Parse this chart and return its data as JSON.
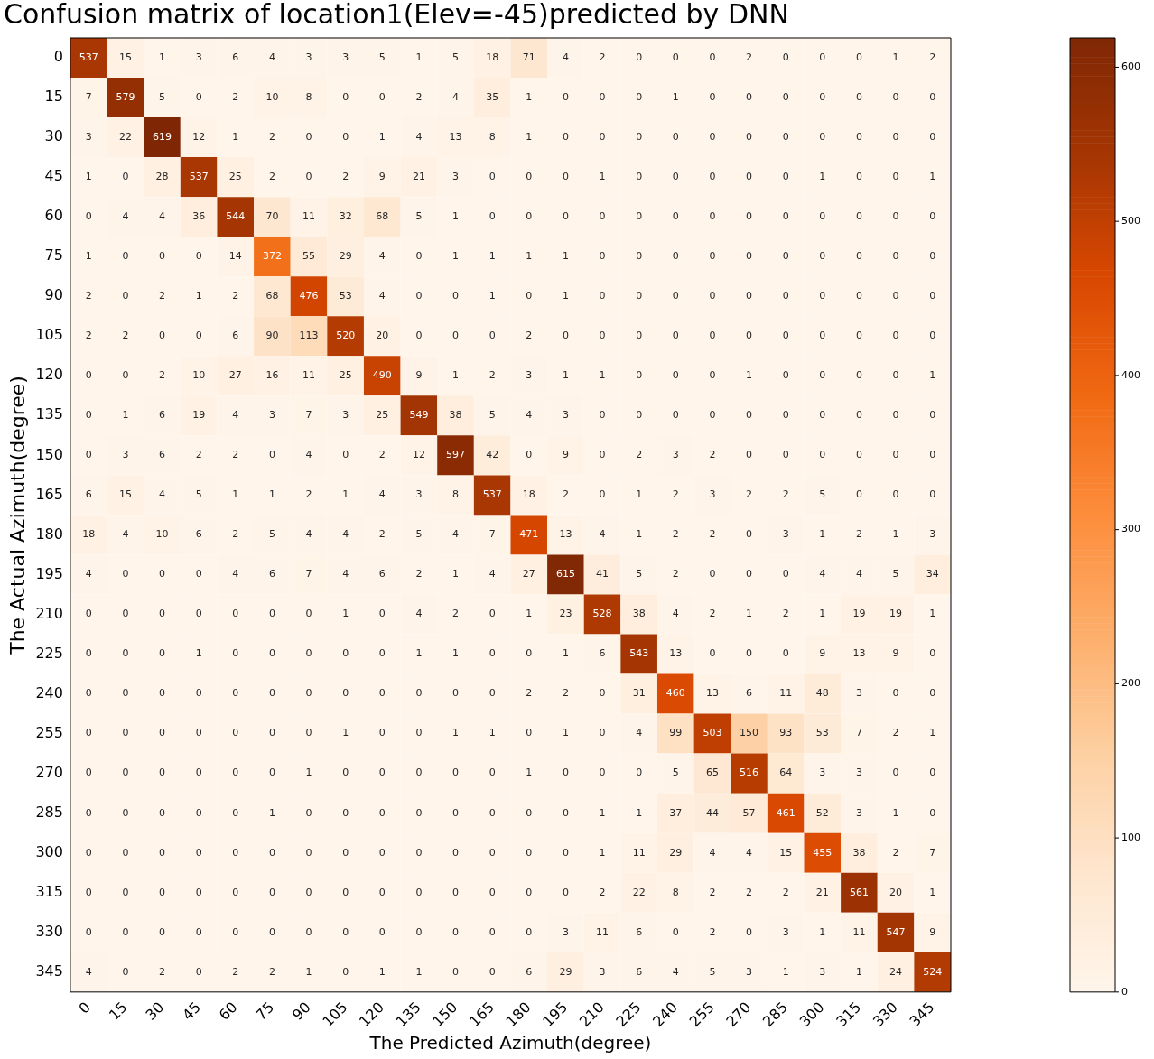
{
  "chart_data": {
    "type": "heatmap",
    "title": "Confusion matrix of location1(Elev=-45)predicted by DNN",
    "xlabel": "The Predicted Azimuth(degree)",
    "ylabel": "The Actual Azimuth(degree)",
    "categories": [
      "0",
      "15",
      "30",
      "45",
      "60",
      "75",
      "90",
      "105",
      "120",
      "135",
      "150",
      "165",
      "180",
      "195",
      "210",
      "225",
      "240",
      "255",
      "270",
      "285",
      "300",
      "315",
      "330",
      "345"
    ],
    "y_categories": [
      "0",
      "15",
      "30",
      "45",
      "60",
      "75",
      "90",
      "105",
      "120",
      "135",
      "150",
      "165",
      "180",
      "195",
      "210",
      "225",
      "240",
      "255",
      "270",
      "285",
      "300",
      "315",
      "330",
      "345"
    ],
    "cells": [
      [
        537,
        15,
        1,
        3,
        6,
        4,
        3,
        3,
        5,
        1,
        5,
        18,
        71,
        4,
        2,
        0,
        0,
        0,
        2,
        0,
        0,
        0,
        1,
        2
      ],
      [
        7,
        579,
        5,
        0,
        2,
        10,
        8,
        0,
        0,
        2,
        4,
        35,
        1,
        0,
        0,
        0,
        1,
        0,
        0,
        0,
        0,
        0,
        0,
        0
      ],
      [
        3,
        22,
        619,
        12,
        1,
        2,
        0,
        0,
        1,
        4,
        13,
        8,
        1,
        0,
        0,
        0,
        0,
        0,
        0,
        0,
        0,
        0,
        0,
        0
      ],
      [
        1,
        0,
        28,
        537,
        25,
        2,
        0,
        2,
        9,
        21,
        3,
        0,
        0,
        0,
        1,
        0,
        0,
        0,
        0,
        0,
        1,
        0,
        0,
        1
      ],
      [
        0,
        4,
        4,
        36,
        544,
        70,
        11,
        32,
        68,
        5,
        1,
        0,
        0,
        0,
        0,
        0,
        0,
        0,
        0,
        0,
        0,
        0,
        0,
        0
      ],
      [
        1,
        0,
        0,
        0,
        14,
        372,
        55,
        29,
        4,
        0,
        1,
        1,
        1,
        1,
        0,
        0,
        0,
        0,
        0,
        0,
        0,
        0,
        0,
        0
      ],
      [
        2,
        0,
        2,
        1,
        2,
        68,
        476,
        53,
        4,
        0,
        0,
        1,
        0,
        1,
        0,
        0,
        0,
        0,
        0,
        0,
        0,
        0,
        0,
        0
      ],
      [
        2,
        2,
        0,
        0,
        6,
        90,
        113,
        520,
        20,
        0,
        0,
        0,
        2,
        0,
        0,
        0,
        0,
        0,
        0,
        0,
        0,
        0,
        0,
        0
      ],
      [
        0,
        0,
        2,
        10,
        27,
        16,
        11,
        25,
        490,
        9,
        1,
        2,
        3,
        1,
        1,
        0,
        0,
        0,
        1,
        0,
        0,
        0,
        0,
        1
      ],
      [
        0,
        1,
        6,
        19,
        4,
        3,
        7,
        3,
        25,
        549,
        38,
        5,
        4,
        3,
        0,
        0,
        0,
        0,
        0,
        0,
        0,
        0,
        0,
        0
      ],
      [
        0,
        3,
        6,
        2,
        2,
        0,
        4,
        0,
        2,
        12,
        597,
        42,
        0,
        9,
        0,
        2,
        3,
        2,
        0,
        0,
        0,
        0,
        0,
        0
      ],
      [
        6,
        15,
        4,
        5,
        1,
        1,
        2,
        1,
        4,
        3,
        8,
        537,
        18,
        2,
        0,
        1,
        2,
        3,
        2,
        2,
        5,
        0,
        0,
        0
      ],
      [
        18,
        4,
        10,
        6,
        2,
        5,
        4,
        4,
        2,
        5,
        4,
        7,
        471,
        13,
        4,
        1,
        2,
        2,
        0,
        3,
        1,
        2,
        1,
        3
      ],
      [
        4,
        0,
        0,
        0,
        4,
        6,
        7,
        4,
        6,
        2,
        1,
        4,
        27,
        615,
        41,
        5,
        2,
        0,
        0,
        0,
        4,
        4,
        5,
        34
      ],
      [
        0,
        0,
        0,
        0,
        0,
        0,
        0,
        1,
        0,
        4,
        2,
        0,
        1,
        23,
        528,
        38,
        4,
        2,
        1,
        2,
        1,
        19,
        19,
        1
      ],
      [
        0,
        0,
        0,
        1,
        0,
        0,
        0,
        0,
        0,
        1,
        1,
        0,
        0,
        1,
        6,
        543,
        13,
        0,
        0,
        0,
        9,
        13,
        9,
        0
      ],
      [
        0,
        0,
        0,
        0,
        0,
        0,
        0,
        0,
        0,
        0,
        0,
        0,
        2,
        2,
        0,
        31,
        460,
        13,
        6,
        11,
        48,
        3,
        0,
        0
      ],
      [
        0,
        0,
        0,
        0,
        0,
        0,
        0,
        1,
        0,
        0,
        1,
        1,
        0,
        1,
        0,
        4,
        99,
        503,
        150,
        93,
        53,
        7,
        2,
        1
      ],
      [
        0,
        0,
        0,
        0,
        0,
        0,
        1,
        0,
        0,
        0,
        0,
        0,
        1,
        0,
        0,
        0,
        5,
        65,
        516,
        64,
        3,
        3,
        0,
        0
      ],
      [
        0,
        0,
        0,
        0,
        0,
        1,
        0,
        0,
        0,
        0,
        0,
        0,
        0,
        0,
        1,
        1,
        37,
        44,
        57,
        461,
        52,
        3,
        1,
        0
      ],
      [
        0,
        0,
        0,
        0,
        0,
        0,
        0,
        0,
        0,
        0,
        0,
        0,
        0,
        0,
        1,
        11,
        29,
        4,
        4,
        15,
        455,
        38,
        2,
        7
      ],
      [
        0,
        0,
        0,
        0,
        0,
        0,
        0,
        0,
        0,
        0,
        0,
        0,
        0,
        0,
        2,
        22,
        8,
        2,
        2,
        2,
        21,
        561,
        20,
        1
      ],
      [
        0,
        0,
        0,
        0,
        0,
        0,
        0,
        0,
        0,
        0,
        0,
        0,
        0,
        3,
        11,
        6,
        0,
        2,
        0,
        3,
        1,
        11,
        547,
        9
      ],
      [
        4,
        0,
        2,
        0,
        2,
        2,
        1,
        0,
        1,
        1,
        0,
        0,
        6,
        29,
        3,
        6,
        4,
        5,
        3,
        1,
        3,
        1,
        24,
        524
      ]
    ],
    "data_labels": true,
    "clim": [
      0,
      619
    ],
    "cticks": [
      0,
      100,
      200,
      300,
      400,
      500,
      600
    ]
  }
}
